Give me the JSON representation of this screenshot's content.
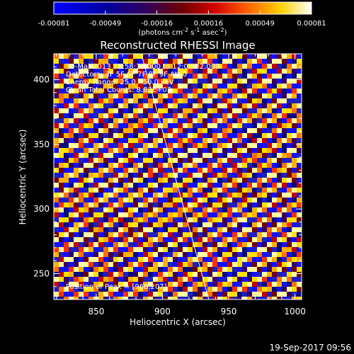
{
  "colorbar": {
    "ticks": [
      "-0.00081",
      "-0.00049",
      "-0.00016",
      "0.00016",
      "0.00049",
      "0.00081"
    ],
    "units_main": "(photons cm",
    "units_exp1": "-2",
    "units_mid": " s",
    "units_exp2": "-1",
    "units_end": " asec",
    "units_exp3": "-2",
    "units_close": ")"
  },
  "chart_data": {
    "type": "heatmap",
    "title": "Reconstructed RHESSI Image",
    "xlabel": "Heliocentric X (arcsec)",
    "ylabel": "Heliocentric Y (arcsec)",
    "xlim": [
      818,
      1005
    ],
    "ylim": [
      230,
      420
    ],
    "xticks": [
      850,
      900,
      950,
      1000
    ],
    "yticks": [
      250,
      300,
      350,
      400
    ],
    "value_range": [
      -0.00081,
      0.00081
    ],
    "limb_line": {
      "x": [
        884,
        935
      ],
      "y": [
        420,
        230
      ]
    },
    "annotations": [
      "30-Mar-2013 11:58:32.000 to 12:08:32.000",
      "Detectors: 3F 5F 6F 7F 8F 9F  Att 0",
      "Energy Range: 25.0 - 50.0 keV",
      "Clean    Total Counts: 8.83E+03"
    ],
    "peak_label": "Position of Peak = [968,207]"
  },
  "footer": {
    "timestamp": "19-Sep-2017 09:56"
  }
}
